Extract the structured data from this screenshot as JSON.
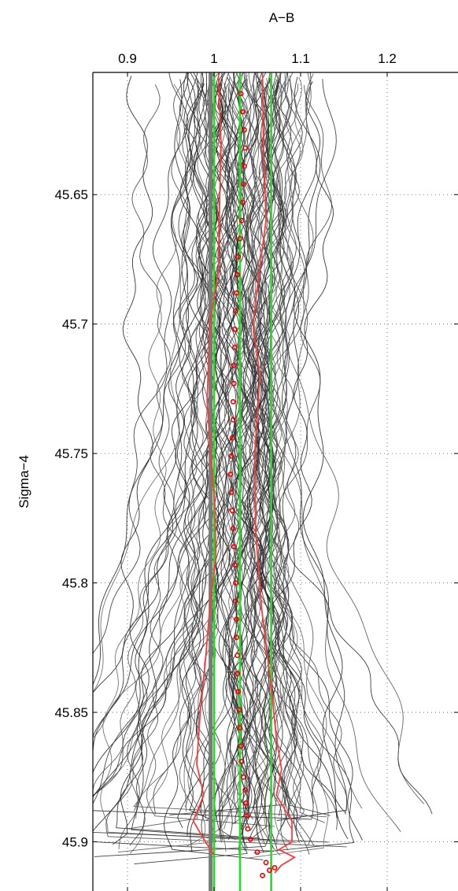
{
  "chart_data": {
    "type": "line",
    "title": "",
    "xlabel": "A−B",
    "ylabel": "Sigma−4",
    "xlim": [
      0.86,
      1.2818
    ],
    "ylim": [
      45.6028,
      45.919
    ],
    "y_reversed": true,
    "x_axis_position": "top",
    "grid": true,
    "grid_style": "dotted",
    "x_ticks": [
      {
        "value": 0.9,
        "label": "0.9"
      },
      {
        "value": 1.0,
        "label": "1"
      },
      {
        "value": 1.1,
        "label": "1.1"
      },
      {
        "value": 1.2,
        "label": "1.2"
      }
    ],
    "y_ticks": [
      {
        "value": 45.65,
        "label": "45.65"
      },
      {
        "value": 45.7,
        "label": "45.7"
      },
      {
        "value": 45.75,
        "label": "45.75"
      },
      {
        "value": 45.8,
        "label": "45.8"
      },
      {
        "value": 45.85,
        "label": "45.85"
      },
      {
        "value": 45.9,
        "label": "45.9"
      }
    ],
    "colors": {
      "profiles": "#3a3a3a",
      "bounds": "#ff3b3b",
      "mean_markers": "#ee0000",
      "reference_lines": "#22dd22",
      "median_line": "#7a7a7a"
    },
    "profile_ensemble": {
      "count": 110,
      "center_x": 1.03,
      "spread_top": 0.045,
      "spread_bottom": 0.12,
      "sigma_range": [
        45.61,
        45.905
      ]
    },
    "series": [
      {
        "role": "mean",
        "style": "markers",
        "points": [
          [
            1.031,
            45.611
          ],
          [
            1.033,
            45.618
          ],
          [
            1.035,
            45.625
          ],
          [
            1.036,
            45.632
          ],
          [
            1.035,
            45.639
          ],
          [
            1.034,
            45.646
          ],
          [
            1.033,
            45.653
          ],
          [
            1.032,
            45.66
          ],
          [
            1.03,
            45.667
          ],
          [
            1.028,
            45.674
          ],
          [
            1.027,
            45.681
          ],
          [
            1.026,
            45.688
          ],
          [
            1.025,
            45.695
          ],
          [
            1.024,
            45.702
          ],
          [
            1.024,
            45.709
          ],
          [
            1.023,
            45.716
          ],
          [
            1.023,
            45.723
          ],
          [
            1.022,
            45.73
          ],
          [
            1.022,
            45.737
          ],
          [
            1.021,
            45.744
          ],
          [
            1.02,
            45.751
          ],
          [
            1.019,
            45.758
          ],
          [
            1.02,
            45.765
          ],
          [
            1.021,
            45.772
          ],
          [
            1.022,
            45.779
          ],
          [
            1.023,
            45.786
          ],
          [
            1.024,
            45.793
          ],
          [
            1.025,
            45.8
          ],
          [
            1.025,
            45.807
          ],
          [
            1.026,
            45.814
          ],
          [
            1.026,
            45.821
          ],
          [
            1.027,
            45.828
          ],
          [
            1.027,
            45.835
          ],
          [
            1.028,
            45.842
          ],
          [
            1.029,
            45.849
          ],
          [
            1.03,
            45.856
          ],
          [
            1.031,
            45.863
          ],
          [
            1.032,
            45.869
          ],
          [
            1.034,
            45.875
          ],
          [
            1.036,
            45.88
          ],
          [
            1.037,
            45.885
          ],
          [
            1.038,
            45.89
          ],
          [
            1.039,
            45.895
          ],
          [
            1.042,
            45.899
          ],
          [
            1.05,
            45.904
          ],
          [
            1.06,
            45.908
          ],
          [
            1.07,
            45.91
          ],
          [
            1.064,
            45.911
          ],
          [
            1.056,
            45.913
          ]
        ]
      },
      {
        "role": "lower-bound",
        "style": "line",
        "points": [
          [
            1.005,
            45.603
          ],
          [
            1.008,
            45.63
          ],
          [
            1.006,
            45.66
          ],
          [
            1.005,
            45.68
          ],
          [
            0.995,
            45.7
          ],
          [
            0.992,
            45.73
          ],
          [
            0.996,
            45.75
          ],
          [
            1.001,
            45.77
          ],
          [
            1.002,
            45.79
          ],
          [
            0.995,
            45.81
          ],
          [
            0.99,
            45.83
          ],
          [
            0.984,
            45.85
          ],
          [
            0.98,
            45.87
          ],
          [
            0.988,
            45.882
          ],
          [
            0.976,
            45.892
          ],
          [
            0.99,
            45.9
          ],
          [
            1.0,
            45.905
          ]
        ]
      },
      {
        "role": "upper-bound",
        "style": "line",
        "points": [
          [
            1.056,
            45.603
          ],
          [
            1.057,
            45.63
          ],
          [
            1.06,
            45.66
          ],
          [
            1.052,
            45.68
          ],
          [
            1.045,
            45.7
          ],
          [
            1.053,
            45.72
          ],
          [
            1.047,
            45.75
          ],
          [
            1.048,
            45.78
          ],
          [
            1.055,
            45.81
          ],
          [
            1.066,
            45.84
          ],
          [
            1.072,
            45.86
          ],
          [
            1.078,
            45.872
          ],
          [
            1.072,
            45.882
          ],
          [
            1.09,
            45.892
          ],
          [
            1.09,
            45.9
          ],
          [
            1.075,
            45.903
          ],
          [
            1.093,
            45.906
          ],
          [
            1.078,
            45.909
          ],
          [
            1.07,
            45.912
          ]
        ]
      },
      {
        "role": "reference",
        "style": "line",
        "points": [
          [
            1.0,
            45.603
          ],
          [
            1.0,
            45.919
          ]
        ]
      },
      {
        "role": "reference",
        "style": "line",
        "points": [
          [
            1.03,
            45.603
          ],
          [
            1.03,
            45.919
          ]
        ]
      },
      {
        "role": "reference",
        "style": "line",
        "points": [
          [
            1.066,
            45.603
          ],
          [
            1.066,
            45.919
          ]
        ]
      },
      {
        "role": "reference",
        "style": "line",
        "points": [
          [
            0.996,
            45.603
          ],
          [
            0.996,
            45.919
          ]
        ]
      }
    ]
  }
}
